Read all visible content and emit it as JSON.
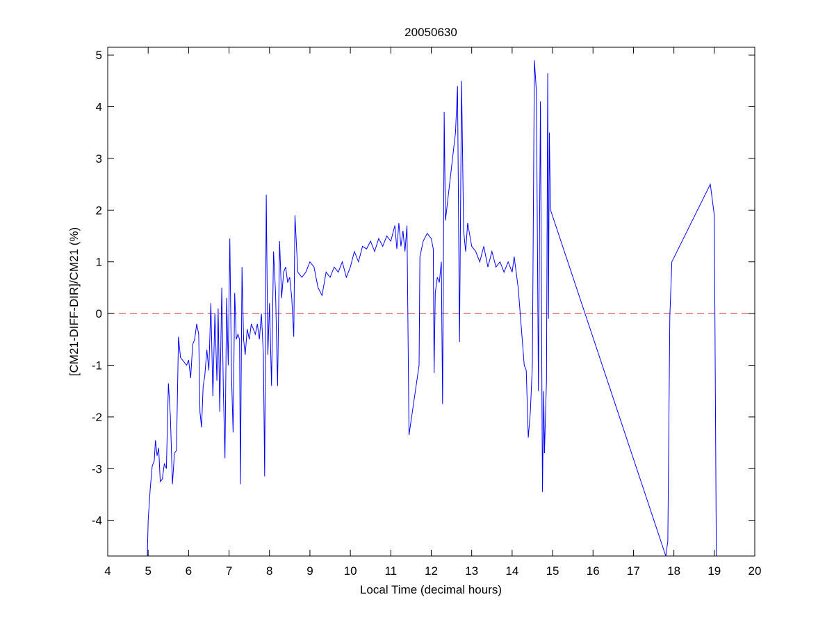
{
  "chart_data": {
    "type": "line",
    "title": "20050630",
    "xlabel": "Local Time (decimal hours)",
    "ylabel": "[CM21-DIFF-DIR]/CM21 (%)",
    "xlim": [
      4,
      20
    ],
    "ylim": [
      -4.69,
      5.15
    ],
    "xticks": [
      4,
      5,
      6,
      7,
      8,
      9,
      10,
      11,
      12,
      13,
      14,
      15,
      16,
      17,
      18,
      19,
      20
    ],
    "yticks": [
      -4,
      -3,
      -2,
      -1,
      0,
      1,
      2,
      3,
      4,
      5
    ],
    "grid": false,
    "colors": {
      "series": "#0000ff",
      "reference": "#cc3333"
    },
    "reference_line": {
      "y": 0,
      "style": "dashed"
    },
    "series": [
      {
        "x": [
          4.98,
          5.0,
          5.05,
          5.1,
          5.15,
          5.18,
          5.22,
          5.26,
          5.3,
          5.35,
          5.4,
          5.45,
          5.5,
          5.55,
          5.6,
          5.65,
          5.7,
          5.75,
          5.8,
          5.9,
          5.95,
          6.0,
          6.05,
          6.1,
          6.15,
          6.2,
          6.25,
          6.28,
          6.32,
          6.36,
          6.4,
          6.45,
          6.5,
          6.55,
          6.6,
          6.65,
          6.7,
          6.73,
          6.77,
          6.82,
          6.86,
          6.9,
          6.94,
          6.98,
          7.02,
          7.06,
          7.1,
          7.14,
          7.18,
          7.22,
          7.26,
          7.28,
          7.32,
          7.36,
          7.4,
          7.45,
          7.5,
          7.55,
          7.6,
          7.65,
          7.7,
          7.75,
          7.8,
          7.85,
          7.88,
          7.92,
          7.96,
          8.0,
          8.05,
          8.1,
          8.15,
          8.2,
          8.25,
          8.3,
          8.35,
          8.4,
          8.45,
          8.5,
          8.55,
          8.6,
          8.63,
          8.7,
          8.8,
          8.9,
          9.0,
          9.1,
          9.2,
          9.3,
          9.4,
          9.5,
          9.6,
          9.7,
          9.8,
          9.9,
          10.0,
          10.1,
          10.2,
          10.3,
          10.4,
          10.5,
          10.6,
          10.7,
          10.8,
          10.9,
          11.0,
          11.1,
          11.15,
          11.2,
          11.25,
          11.3,
          11.35,
          11.4,
          11.45,
          11.7,
          11.72,
          11.8,
          11.9,
          12.0,
          12.05,
          12.07,
          12.1,
          12.15,
          12.2,
          12.25,
          12.28,
          12.3,
          12.32,
          12.35,
          12.6,
          12.65,
          12.7,
          12.75,
          12.8,
          12.85,
          12.9,
          13.0,
          13.1,
          13.2,
          13.3,
          13.4,
          13.5,
          13.6,
          13.7,
          13.8,
          13.9,
          14.0,
          14.05,
          14.1,
          14.15,
          14.2,
          14.3,
          14.35,
          14.4,
          14.45,
          14.5,
          14.55,
          14.6,
          14.65,
          14.7,
          14.75,
          14.78,
          14.8,
          14.85,
          14.88,
          14.9,
          14.92,
          14.95,
          17.8,
          17.85,
          17.9,
          17.95,
          18.9,
          19.0,
          19.05
        ],
        "y": [
          -4.69,
          -4.0,
          -3.4,
          -2.95,
          -2.85,
          -2.45,
          -2.75,
          -2.6,
          -3.25,
          -3.2,
          -2.9,
          -3.0,
          -1.35,
          -2.0,
          -3.3,
          -2.7,
          -2.65,
          -0.45,
          -0.85,
          -0.95,
          -1.0,
          -0.9,
          -1.25,
          -0.6,
          -0.5,
          -0.2,
          -0.4,
          -1.9,
          -2.2,
          -1.4,
          -1.2,
          -0.7,
          -1.1,
          0.2,
          -1.6,
          0.0,
          -1.3,
          0.1,
          -1.9,
          0.5,
          -1.5,
          -2.8,
          0.3,
          -1.0,
          1.45,
          -1.2,
          -2.3,
          0.4,
          -0.5,
          -0.4,
          -0.5,
          -3.3,
          0.9,
          -0.5,
          -0.8,
          -0.3,
          -0.5,
          -0.2,
          -0.3,
          -0.4,
          -0.2,
          -0.5,
          0.0,
          -0.8,
          -3.15,
          2.3,
          -0.8,
          0.2,
          -1.4,
          1.2,
          0.4,
          -1.4,
          1.4,
          0.3,
          0.8,
          0.9,
          0.6,
          0.7,
          0.3,
          -0.45,
          1.9,
          0.8,
          0.7,
          0.8,
          1.0,
          0.9,
          0.5,
          0.35,
          0.8,
          0.7,
          0.9,
          0.8,
          1.0,
          0.7,
          0.9,
          1.2,
          1.0,
          1.3,
          1.25,
          1.4,
          1.2,
          1.45,
          1.3,
          1.5,
          1.4,
          1.7,
          1.25,
          1.75,
          1.3,
          1.6,
          1.2,
          1.7,
          -2.35,
          -1.0,
          1.1,
          1.4,
          1.55,
          1.45,
          1.25,
          -1.15,
          0.4,
          0.7,
          0.6,
          1.0,
          -1.75,
          0.9,
          3.9,
          1.8,
          3.5,
          4.4,
          -0.55,
          4.5,
          1.6,
          1.2,
          1.75,
          1.3,
          1.2,
          1.0,
          1.3,
          0.9,
          1.2,
          0.9,
          1.0,
          0.8,
          1.0,
          0.8,
          1.1,
          0.8,
          0.5,
          0.0,
          -1.0,
          -1.1,
          -2.4,
          -1.9,
          -1.0,
          4.9,
          4.3,
          -1.5,
          4.1,
          -3.45,
          -1.5,
          -2.7,
          -1.3,
          4.65,
          -0.1,
          3.5,
          2.0,
          -4.69,
          -4.4,
          -0.05,
          1.0,
          2.5,
          1.9,
          -4.69
        ]
      }
    ]
  }
}
